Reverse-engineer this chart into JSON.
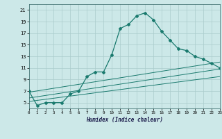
{
  "bg_color": "#cce8e8",
  "grid_color": "#aacccc",
  "line_color": "#1a7a6e",
  "x_min": 0,
  "x_max": 23,
  "y_min": 4,
  "y_max": 22,
  "yticks": [
    5,
    7,
    9,
    11,
    13,
    15,
    17,
    19,
    21
  ],
  "xticks": [
    0,
    1,
    2,
    3,
    4,
    5,
    6,
    7,
    8,
    9,
    10,
    11,
    12,
    13,
    14,
    15,
    16,
    17,
    18,
    19,
    20,
    21,
    22,
    23
  ],
  "xlabel": "Humidex (Indice chaleur)",
  "curve1_x": [
    0,
    1,
    2,
    3,
    4,
    5,
    6,
    7,
    8,
    9,
    10,
    11,
    12,
    13,
    14,
    15,
    16,
    17,
    18,
    19,
    20,
    21,
    22,
    23
  ],
  "curve1_y": [
    7.0,
    4.5,
    5.0,
    5.0,
    5.0,
    6.5,
    7.0,
    9.5,
    10.3,
    10.3,
    13.3,
    17.8,
    18.5,
    20.0,
    20.5,
    19.3,
    17.3,
    15.8,
    14.3,
    14.0,
    13.0,
    12.5,
    11.8,
    11.0
  ],
  "curve2_x": [
    0,
    23
  ],
  "curve2_y": [
    6.8,
    12.0
  ],
  "curve3_x": [
    0,
    23
  ],
  "curve3_y": [
    5.8,
    10.8
  ],
  "curve4_x": [
    0,
    23
  ],
  "curve4_y": [
    5.2,
    9.5
  ]
}
